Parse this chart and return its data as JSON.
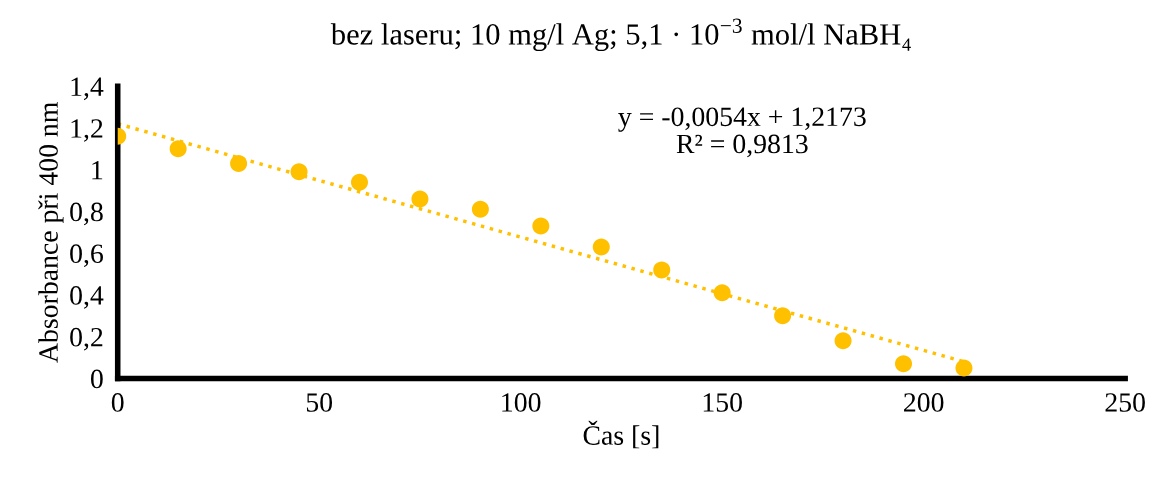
{
  "chart_data": {
    "type": "scatter",
    "title": "bez laseru; 10 mg/l Ag; 5,1 · 10$^{−3}$ mol/l NaBH₄",
    "xlabel": "Čas [s]",
    "ylabel": "Absorbance při 400 nm",
    "x": [
      0,
      15,
      30,
      45,
      60,
      75,
      90,
      105,
      120,
      135,
      150,
      165,
      180,
      195,
      210
    ],
    "series": [
      {
        "color": "#ffc000",
        "marker": "circle",
        "values": [
          1.16,
          1.1,
          1.03,
          0.99,
          0.94,
          0.86,
          0.81,
          0.73,
          0.63,
          0.52,
          0.41,
          0.3,
          0.18,
          0.07,
          0.05
        ]
      },
      {
        "type": "line",
        "color": "#ffc000",
        "line_style": "dotted",
        "marker": "none",
        "x": [
          0,
          210
        ],
        "values": [
          1.22,
          0.08
        ]
      }
    ],
    "xlim": [
      0,
      250
    ],
    "xticks": [
      0,
      50,
      100,
      150,
      200,
      250
    ],
    "ylim": [
      0,
      1.4
    ],
    "yticks": [
      0,
      {
        "value": 0.2,
        "label": "0,2"
      },
      {
        "value": 0.4,
        "label": "0,4"
      },
      {
        "value": 0.6,
        "label": "0,6"
      },
      {
        "value": 0.8,
        "label": "0,8"
      },
      1,
      {
        "value": 1.2,
        "label": "1,2"
      },
      {
        "value": 1.4,
        "label": "1,4"
      }
    ],
    "annotations": [
      "y = -0,0054x + 1,2173\nR² = 0,9813"
    ],
    "grid": false,
    "legend": false
  }
}
